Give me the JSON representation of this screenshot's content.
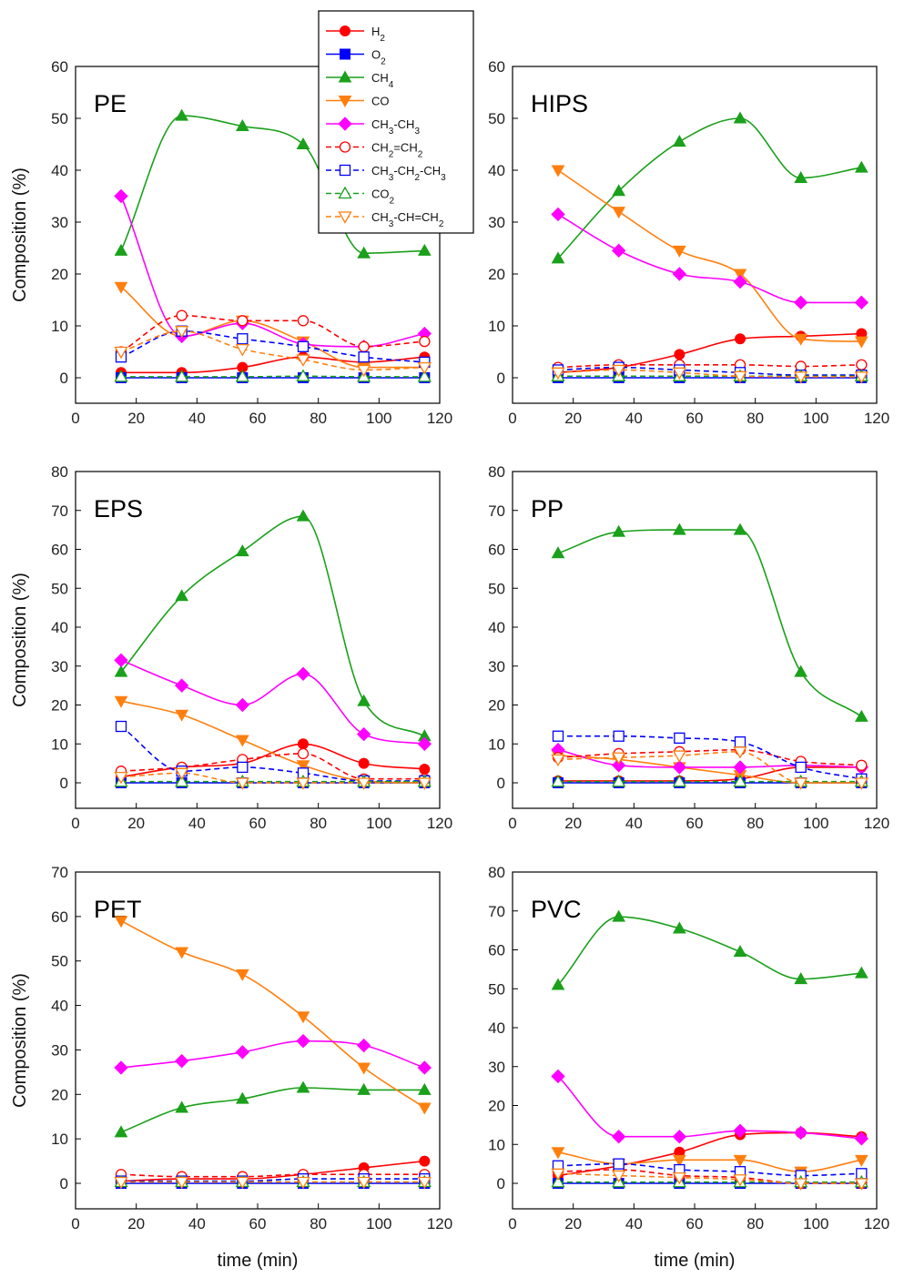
{
  "figure": {
    "legend": {
      "placement": "top-center",
      "entries": [
        {
          "series": "h2",
          "label_parts": [
            {
              "t": "H"
            },
            {
              "t": "2",
              "sub": true
            }
          ]
        },
        {
          "series": "o2",
          "label_parts": [
            {
              "t": "O"
            },
            {
              "t": "2",
              "sub": true
            }
          ]
        },
        {
          "series": "ch4",
          "label_parts": [
            {
              "t": "CH"
            },
            {
              "t": "4",
              "sub": true
            }
          ]
        },
        {
          "series": "co",
          "label_parts": [
            {
              "t": "CO"
            }
          ]
        },
        {
          "series": "ethane",
          "label_parts": [
            {
              "t": "CH"
            },
            {
              "t": "3",
              "sub": true
            },
            {
              "t": "-CH"
            },
            {
              "t": "3",
              "sub": true
            }
          ]
        },
        {
          "series": "ethylene",
          "label_parts": [
            {
              "t": "CH"
            },
            {
              "t": "2",
              "sub": true
            },
            {
              "t": "=CH"
            },
            {
              "t": "2",
              "sub": true
            }
          ]
        },
        {
          "series": "propane",
          "label_parts": [
            {
              "t": "CH"
            },
            {
              "t": "3",
              "sub": true
            },
            {
              "t": "-CH"
            },
            {
              "t": "2",
              "sub": true
            },
            {
              "t": "-CH"
            },
            {
              "t": "3",
              "sub": true
            }
          ]
        },
        {
          "series": "co2",
          "label_parts": [
            {
              "t": "CO"
            },
            {
              "t": "2",
              "sub": true
            }
          ]
        },
        {
          "series": "propylene",
          "label_parts": [
            {
              "t": "CH"
            },
            {
              "t": "3",
              "sub": true
            },
            {
              "t": "-CH=CH"
            },
            {
              "t": "2",
              "sub": true
            }
          ]
        }
      ]
    }
  },
  "series_styles": {
    "h2": {
      "color": "#ff0000",
      "marker": "circle",
      "filled": true,
      "dashed": false
    },
    "o2": {
      "color": "#0000ff",
      "marker": "square",
      "filled": true,
      "dashed": false
    },
    "ch4": {
      "color": "#1aa01a",
      "marker": "triangle-up",
      "filled": true,
      "dashed": false
    },
    "co": {
      "color": "#ff7f0e",
      "marker": "triangle-down",
      "filled": true,
      "dashed": false
    },
    "ethane": {
      "color": "#ff00ff",
      "marker": "diamond",
      "filled": true,
      "dashed": false
    },
    "ethylene": {
      "color": "#ff0000",
      "marker": "circle",
      "filled": false,
      "dashed": true
    },
    "propane": {
      "color": "#0000ff",
      "marker": "square",
      "filled": false,
      "dashed": true
    },
    "co2": {
      "color": "#1aa01a",
      "marker": "triangle-up",
      "filled": false,
      "dashed": true
    },
    "propylene": {
      "color": "#ff7f0e",
      "marker": "triangle-down",
      "filled": false,
      "dashed": true
    }
  },
  "chart_data": [
    {
      "type": "line",
      "panel_label": "PE",
      "xlabel": "",
      "ylabel": "Composition (%)",
      "xlim": [
        0,
        120
      ],
      "ylim": [
        0,
        60
      ],
      "grid": false,
      "x_ticks": [
        "0",
        "20",
        "40",
        "60",
        "80",
        "100",
        "120"
      ],
      "y_ticks": [
        "0",
        "10",
        "20",
        "30",
        "40",
        "50",
        "60"
      ],
      "x": [
        15,
        35,
        55,
        75,
        95,
        115
      ],
      "series": [
        {
          "key": "h2",
          "name": "H2",
          "values": [
            1,
            1,
            2,
            4,
            3,
            4
          ]
        },
        {
          "key": "o2",
          "name": "O2",
          "values": [
            0,
            0,
            0,
            0,
            0,
            0
          ]
        },
        {
          "key": "ch4",
          "name": "CH4",
          "values": [
            24.5,
            50.5,
            48.5,
            45,
            24,
            24.5
          ]
        },
        {
          "key": "co",
          "name": "CO",
          "values": [
            17.5,
            8,
            11,
            7,
            2,
            2
          ]
        },
        {
          "key": "ethane",
          "name": "CH3-CH3",
          "values": [
            35,
            8,
            10.5,
            6.5,
            6,
            8.5
          ]
        },
        {
          "key": "ethylene",
          "name": "CH2=CH2",
          "values": [
            5,
            12,
            11,
            11,
            6,
            7
          ]
        },
        {
          "key": "propane",
          "name": "CH3-CH2-CH3",
          "values": [
            4,
            9,
            7.5,
            6,
            4,
            3
          ]
        },
        {
          "key": "co2",
          "name": "CO2",
          "values": [
            0.2,
            0.2,
            0.2,
            0.3,
            0.2,
            0.2
          ]
        },
        {
          "key": "propylene",
          "name": "CH3-CH=CH2",
          "values": [
            5,
            9,
            5.5,
            3.5,
            1.5,
            2
          ]
        }
      ]
    },
    {
      "type": "line",
      "panel_label": "HIPS",
      "xlabel": "",
      "ylabel": "",
      "xlim": [
        0,
        120
      ],
      "ylim": [
        0,
        60
      ],
      "grid": false,
      "x_ticks": [
        "0",
        "20",
        "40",
        "60",
        "80",
        "100",
        "120"
      ],
      "y_ticks": [
        "0",
        "10",
        "20",
        "30",
        "40",
        "50",
        "60"
      ],
      "x": [
        15,
        35,
        55,
        75,
        95,
        115
      ],
      "series": [
        {
          "key": "h2",
          "name": "H2",
          "values": [
            1,
            2,
            4.5,
            7.5,
            8,
            8.5
          ]
        },
        {
          "key": "o2",
          "name": "O2",
          "values": [
            0,
            0,
            0,
            0,
            0,
            0
          ]
        },
        {
          "key": "ch4",
          "name": "CH4",
          "values": [
            23,
            36,
            45.5,
            50,
            38.5,
            40.5
          ]
        },
        {
          "key": "co",
          "name": "CO",
          "values": [
            40,
            32,
            24.5,
            20,
            7.5,
            7
          ]
        },
        {
          "key": "ethane",
          "name": "CH3-CH3",
          "values": [
            31.5,
            24.5,
            20,
            18.5,
            14.5,
            14.5
          ]
        },
        {
          "key": "ethylene",
          "name": "CH2=CH2",
          "values": [
            2,
            2.5,
            2.5,
            2.5,
            2.2,
            2.5
          ]
        },
        {
          "key": "propane",
          "name": "CH3-CH2-CH3",
          "values": [
            1.5,
            2,
            1.5,
            1,
            0.5,
            0.5
          ]
        },
        {
          "key": "co2",
          "name": "CO2",
          "values": [
            0.3,
            0.3,
            0.3,
            0.3,
            0.3,
            0.3
          ]
        },
        {
          "key": "propylene",
          "name": "CH3-CH=CH2",
          "values": [
            1,
            1.5,
            1,
            0.3,
            0.2,
            0.2
          ]
        }
      ]
    },
    {
      "type": "line",
      "panel_label": "EPS",
      "xlabel": "",
      "ylabel": "Composition (%)",
      "xlim": [
        0,
        120
      ],
      "ylim": [
        0,
        80
      ],
      "grid": false,
      "x_ticks": [
        "0",
        "20",
        "40",
        "60",
        "80",
        "100",
        "120"
      ],
      "y_ticks": [
        "0",
        "10",
        "20",
        "30",
        "40",
        "50",
        "60",
        "70",
        "80"
      ],
      "x": [
        15,
        35,
        55,
        75,
        95,
        115
      ],
      "series": [
        {
          "key": "h2",
          "name": "H2",
          "values": [
            1.5,
            4,
            5,
            10,
            5,
            3.5
          ]
        },
        {
          "key": "o2",
          "name": "O2",
          "values": [
            0,
            0,
            0,
            0,
            0,
            0
          ]
        },
        {
          "key": "ch4",
          "name": "CH4",
          "values": [
            28.5,
            48,
            59.5,
            68.5,
            21,
            12
          ]
        },
        {
          "key": "co",
          "name": "CO",
          "values": [
            21,
            17.5,
            11,
            4.5,
            0.5,
            0
          ]
        },
        {
          "key": "ethane",
          "name": "CH3-CH3",
          "values": [
            31.5,
            25,
            20,
            28,
            12.5,
            10
          ]
        },
        {
          "key": "ethylene",
          "name": "CH2=CH2",
          "values": [
            3,
            4,
            6,
            7.5,
            1,
            1
          ]
        },
        {
          "key": "propane",
          "name": "CH3-CH2-CH3",
          "values": [
            14.5,
            3,
            4,
            2.5,
            0.5,
            0.5
          ]
        },
        {
          "key": "co2",
          "name": "CO2",
          "values": [
            0.3,
            0.3,
            0.3,
            0.3,
            0.3,
            0.3
          ]
        },
        {
          "key": "propylene",
          "name": "CH3-CH=CH2",
          "values": [
            1.5,
            2.5,
            0,
            0,
            0,
            0
          ]
        }
      ]
    },
    {
      "type": "line",
      "panel_label": "PP",
      "xlabel": "",
      "ylabel": "",
      "xlim": [
        0,
        120
      ],
      "ylim": [
        0,
        80
      ],
      "grid": false,
      "x_ticks": [
        "0",
        "20",
        "40",
        "60",
        "80",
        "100",
        "120"
      ],
      "y_ticks": [
        "0",
        "10",
        "20",
        "30",
        "40",
        "50",
        "60",
        "70",
        "80"
      ],
      "x": [
        15,
        35,
        55,
        75,
        95,
        115
      ],
      "series": [
        {
          "key": "h2",
          "name": "H2",
          "values": [
            0.5,
            0.5,
            0.5,
            1,
            4,
            4
          ]
        },
        {
          "key": "o2",
          "name": "O2",
          "values": [
            0,
            0,
            0,
            0,
            0,
            0
          ]
        },
        {
          "key": "ch4",
          "name": "CH4",
          "values": [
            59,
            64.5,
            65,
            65,
            28.5,
            17
          ]
        },
        {
          "key": "co",
          "name": "CO",
          "values": [
            7,
            6,
            4,
            2,
            0,
            0
          ]
        },
        {
          "key": "ethane",
          "name": "CH3-CH3",
          "values": [
            8.5,
            4.5,
            4,
            4,
            4.5,
            4
          ]
        },
        {
          "key": "ethylene",
          "name": "CH2=CH2",
          "values": [
            6.5,
            7.5,
            8,
            8.5,
            5.5,
            4.5
          ]
        },
        {
          "key": "propane",
          "name": "CH3-CH2-CH3",
          "values": [
            12,
            12,
            11.5,
            10.5,
            4,
            1
          ]
        },
        {
          "key": "co2",
          "name": "CO2",
          "values": [
            0.3,
            0.3,
            0.3,
            0.3,
            0.3,
            0.3
          ]
        },
        {
          "key": "propylene",
          "name": "CH3-CH=CH2",
          "values": [
            6,
            6.5,
            7,
            8,
            0,
            0
          ]
        }
      ]
    },
    {
      "type": "line",
      "panel_label": "PET",
      "xlabel": "time (min)",
      "ylabel": "Composition (%)",
      "xlim": [
        0,
        120
      ],
      "ylim": [
        0,
        70
      ],
      "grid": false,
      "x_ticks": [
        "0",
        "20",
        "40",
        "60",
        "80",
        "100",
        "120"
      ],
      "y_ticks": [
        "0",
        "10",
        "20",
        "30",
        "40",
        "50",
        "60",
        "70"
      ],
      "x": [
        15,
        35,
        55,
        75,
        95,
        115
      ],
      "series": [
        {
          "key": "h2",
          "name": "H2",
          "values": [
            0.5,
            1,
            1,
            2,
            3.5,
            5
          ]
        },
        {
          "key": "o2",
          "name": "O2",
          "values": [
            0,
            0,
            0,
            0,
            0,
            0
          ]
        },
        {
          "key": "ch4",
          "name": "CH4",
          "values": [
            11.5,
            17,
            19,
            21.5,
            21,
            21
          ]
        },
        {
          "key": "co",
          "name": "CO",
          "values": [
            59,
            52,
            47,
            37.5,
            26,
            17
          ]
        },
        {
          "key": "ethane",
          "name": "CH3-CH3",
          "values": [
            26,
            27.5,
            29.5,
            32,
            31,
            26
          ]
        },
        {
          "key": "ethylene",
          "name": "CH2=CH2",
          "values": [
            2,
            1.5,
            1.5,
            2,
            2,
            2
          ]
        },
        {
          "key": "propane",
          "name": "CH3-CH2-CH3",
          "values": [
            0.5,
            0.5,
            0.5,
            1,
            1,
            1
          ]
        },
        {
          "key": "co2",
          "name": "CO2",
          "values": [
            0.3,
            0.3,
            0.3,
            0.3,
            0.3,
            0.3
          ]
        },
        {
          "key": "propylene",
          "name": "CH3-CH=CH2",
          "values": [
            0.3,
            0.3,
            0.3,
            0.3,
            0.3,
            0.3
          ]
        }
      ]
    },
    {
      "type": "line",
      "panel_label": "PVC",
      "xlabel": "time (min)",
      "ylabel": "",
      "xlim": [
        0,
        120
      ],
      "ylim": [
        0,
        80
      ],
      "grid": false,
      "x_ticks": [
        "0",
        "20",
        "40",
        "60",
        "80",
        "100",
        "120"
      ],
      "y_ticks": [
        "0",
        "10",
        "20",
        "30",
        "40",
        "50",
        "60",
        "70",
        "80"
      ],
      "x": [
        15,
        35,
        55,
        75,
        95,
        115
      ],
      "series": [
        {
          "key": "h2",
          "name": "H2",
          "values": [
            2,
            4.5,
            8,
            12.5,
            13,
            12
          ]
        },
        {
          "key": "o2",
          "name": "O2",
          "values": [
            0,
            0,
            0,
            0,
            0,
            0
          ]
        },
        {
          "key": "ch4",
          "name": "CH4",
          "values": [
            51,
            68.5,
            65.5,
            59.5,
            52.5,
            54
          ]
        },
        {
          "key": "co",
          "name": "CO",
          "values": [
            8,
            5,
            6,
            6,
            3,
            6
          ]
        },
        {
          "key": "ethane",
          "name": "CH3-CH3",
          "values": [
            27.5,
            12,
            12,
            13.5,
            13,
            11.5
          ]
        },
        {
          "key": "ethylene",
          "name": "CH2=CH2",
          "values": [
            3,
            3.5,
            2,
            1.5,
            0,
            0
          ]
        },
        {
          "key": "propane",
          "name": "CH3-CH2-CH3",
          "values": [
            4.5,
            5,
            3.5,
            3,
            2,
            2.5
          ]
        },
        {
          "key": "co2",
          "name": "CO2",
          "values": [
            0.3,
            0.3,
            0.3,
            0.3,
            0.3,
            0.3
          ]
        },
        {
          "key": "propylene",
          "name": "CH3-CH=CH2",
          "values": [
            2.5,
            2,
            1.5,
            1,
            0,
            0
          ]
        }
      ]
    }
  ]
}
